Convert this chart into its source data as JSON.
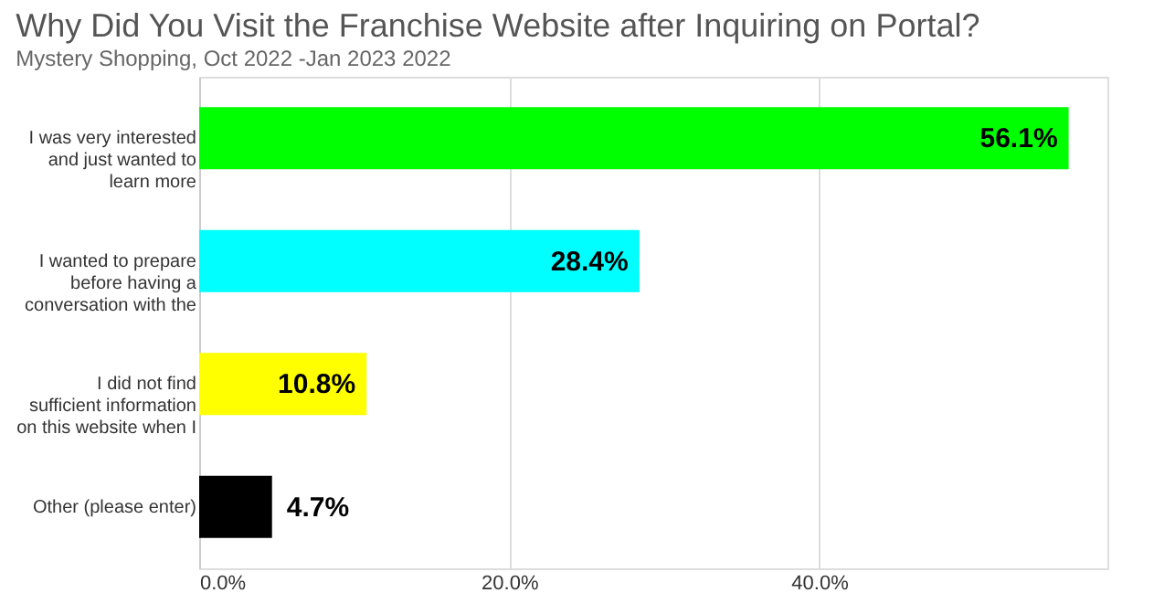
{
  "chart_data": {
    "type": "bar",
    "orientation": "horizontal",
    "title": "Why Did You Visit the Franchise Website after Inquiring on Portal?",
    "subtitle": "Mystery Shopping, Oct 2022 -Jan 2023 2022",
    "categories": [
      "I was very interested and just wanted to learn more",
      "I wanted to prepare before having a conversation with the",
      "I did not find sufficient information on this website when I",
      "Other (please enter)"
    ],
    "values": [
      56.1,
      28.4,
      10.8,
      4.7
    ],
    "colors": [
      "#00ff00",
      "#00ffff",
      "#ffff00",
      "#000000"
    ],
    "value_labels": [
      "56.1%",
      "28.4%",
      "10.8%",
      "4.7%"
    ],
    "xlim": [
      0,
      58.6
    ],
    "xticks": [
      {
        "value": 0,
        "label": "0.0%"
      },
      {
        "value": 20,
        "label": "20.0%"
      },
      {
        "value": 40,
        "label": "40.0%"
      }
    ],
    "grid": "x"
  }
}
